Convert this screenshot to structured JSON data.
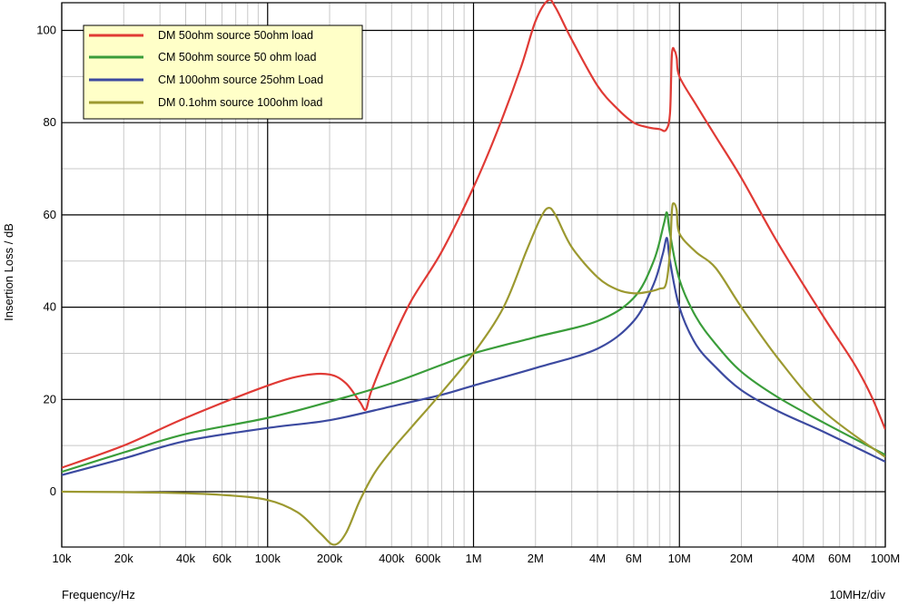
{
  "chart_data": {
    "type": "line",
    "xlabel": "Frequency/Hz",
    "ylabel": "Insertion Loss / dB",
    "x_scale_note": "10MHz/div",
    "xscale": "log",
    "xlim": [
      10000,
      100000000
    ],
    "ylim": [
      -12,
      106
    ],
    "grid": true,
    "legend_position": "top-left",
    "x_ticks": [
      {
        "value": 10000,
        "label": "10k"
      },
      {
        "value": 20000,
        "label": "20k"
      },
      {
        "value": 40000,
        "label": "40k"
      },
      {
        "value": 60000,
        "label": "60k"
      },
      {
        "value": 100000,
        "label": "100k"
      },
      {
        "value": 200000,
        "label": "200k"
      },
      {
        "value": 400000,
        "label": "400k"
      },
      {
        "value": 600000,
        "label": "600k"
      },
      {
        "value": 1000000,
        "label": "1M"
      },
      {
        "value": 2000000,
        "label": "2M"
      },
      {
        "value": 4000000,
        "label": "4M"
      },
      {
        "value": 6000000,
        "label": "6M"
      },
      {
        "value": 10000000,
        "label": "10M"
      },
      {
        "value": 20000000,
        "label": "20M"
      },
      {
        "value": 40000000,
        "label": "40M"
      },
      {
        "value": 60000000,
        "label": "60M"
      },
      {
        "value": 100000000,
        "label": "100M"
      }
    ],
    "y_ticks": [
      {
        "value": 0,
        "label": "0"
      },
      {
        "value": 20,
        "label": "20"
      },
      {
        "value": 40,
        "label": "40"
      },
      {
        "value": 60,
        "label": "60"
      },
      {
        "value": 80,
        "label": "80"
      },
      {
        "value": 100,
        "label": "100"
      }
    ],
    "series": [
      {
        "name": "DM 50ohm source 50ohm load",
        "color": "#e03a35",
        "points": [
          [
            10000,
            5.2
          ],
          [
            20000,
            10
          ],
          [
            40000,
            16
          ],
          [
            100000,
            23
          ],
          [
            150000,
            25.2
          ],
          [
            200000,
            25.4
          ],
          [
            240000,
            23.5
          ],
          [
            280000,
            19.5
          ],
          [
            300000,
            17.8
          ],
          [
            320000,
            22
          ],
          [
            400000,
            32.5
          ],
          [
            500000,
            41.5
          ],
          [
            700000,
            52
          ],
          [
            1000000,
            66
          ],
          [
            1300000,
            78
          ],
          [
            1700000,
            92
          ],
          [
            2000000,
            102
          ],
          [
            2300000,
            106.5
          ],
          [
            2500000,
            105
          ],
          [
            3000000,
            98
          ],
          [
            4000000,
            88
          ],
          [
            5000000,
            83
          ],
          [
            6000000,
            80
          ],
          [
            7000000,
            79
          ],
          [
            8000000,
            78.6
          ],
          [
            8600000,
            78.4
          ],
          [
            9000000,
            82
          ],
          [
            9200000,
            95
          ],
          [
            9500000,
            95.5
          ],
          [
            9700000,
            94
          ],
          [
            10000000,
            90
          ],
          [
            12000000,
            84
          ],
          [
            15000000,
            77
          ],
          [
            20000000,
            68
          ],
          [
            30000000,
            54
          ],
          [
            50000000,
            38
          ],
          [
            70000000,
            28
          ],
          [
            85000000,
            21
          ],
          [
            100000000,
            13.5
          ]
        ]
      },
      {
        "name": "CM 50ohm source 50 ohm load",
        "color": "#3a9d3a",
        "points": [
          [
            10000,
            4.3
          ],
          [
            20000,
            8.5
          ],
          [
            40000,
            12.5
          ],
          [
            100000,
            16
          ],
          [
            200000,
            19.5
          ],
          [
            400000,
            23.5
          ],
          [
            700000,
            27.5
          ],
          [
            1000000,
            30
          ],
          [
            2000000,
            33.5
          ],
          [
            4000000,
            37
          ],
          [
            6000000,
            42
          ],
          [
            7500000,
            50
          ],
          [
            8400000,
            58
          ],
          [
            8700000,
            60.5
          ],
          [
            9000000,
            56
          ],
          [
            10000000,
            46
          ],
          [
            12000000,
            38
          ],
          [
            15000000,
            32
          ],
          [
            20000000,
            26
          ],
          [
            30000000,
            20.5
          ],
          [
            50000000,
            15
          ],
          [
            100000000,
            8
          ]
        ]
      },
      {
        "name": "CM 100ohm source 25ohm Load",
        "color": "#3c4aa0",
        "points": [
          [
            10000,
            3.6
          ],
          [
            20000,
            7.2
          ],
          [
            40000,
            11
          ],
          [
            100000,
            13.8
          ],
          [
            200000,
            15.5
          ],
          [
            400000,
            18.5
          ],
          [
            700000,
            21
          ],
          [
            1000000,
            23
          ],
          [
            2000000,
            26.8
          ],
          [
            4000000,
            31
          ],
          [
            6000000,
            37
          ],
          [
            7500000,
            45
          ],
          [
            8300000,
            51.5
          ],
          [
            8700000,
            55
          ],
          [
            9000000,
            50
          ],
          [
            10000000,
            40
          ],
          [
            12000000,
            32
          ],
          [
            15000000,
            27
          ],
          [
            20000000,
            22
          ],
          [
            30000000,
            17.5
          ],
          [
            50000000,
            13
          ],
          [
            100000000,
            6.5
          ]
        ]
      },
      {
        "name": "DM 0.1ohm source 100ohm load",
        "color": "#9c9930",
        "points": [
          [
            10000,
            0
          ],
          [
            30000,
            -0.2
          ],
          [
            60000,
            -0.7
          ],
          [
            100000,
            -1.8
          ],
          [
            140000,
            -4.5
          ],
          [
            180000,
            -9
          ],
          [
            210000,
            -11.5
          ],
          [
            240000,
            -9
          ],
          [
            280000,
            -2
          ],
          [
            330000,
            4
          ],
          [
            400000,
            9
          ],
          [
            500000,
            14
          ],
          [
            700000,
            21.5
          ],
          [
            1000000,
            30
          ],
          [
            1400000,
            40
          ],
          [
            1800000,
            52
          ],
          [
            2100000,
            59
          ],
          [
            2300000,
            61.5
          ],
          [
            2500000,
            60
          ],
          [
            3000000,
            53
          ],
          [
            4000000,
            46.5
          ],
          [
            5000000,
            43.8
          ],
          [
            6000000,
            43
          ],
          [
            7000000,
            43.3
          ],
          [
            8000000,
            44
          ],
          [
            8600000,
            45
          ],
          [
            9000000,
            52
          ],
          [
            9200000,
            61
          ],
          [
            9400000,
            62.5
          ],
          [
            9700000,
            61
          ],
          [
            10000000,
            56
          ],
          [
            12000000,
            52
          ],
          [
            15000000,
            48.5
          ],
          [
            20000000,
            40
          ],
          [
            30000000,
            29
          ],
          [
            50000000,
            17.5
          ],
          [
            100000000,
            7.5
          ]
        ]
      }
    ]
  }
}
